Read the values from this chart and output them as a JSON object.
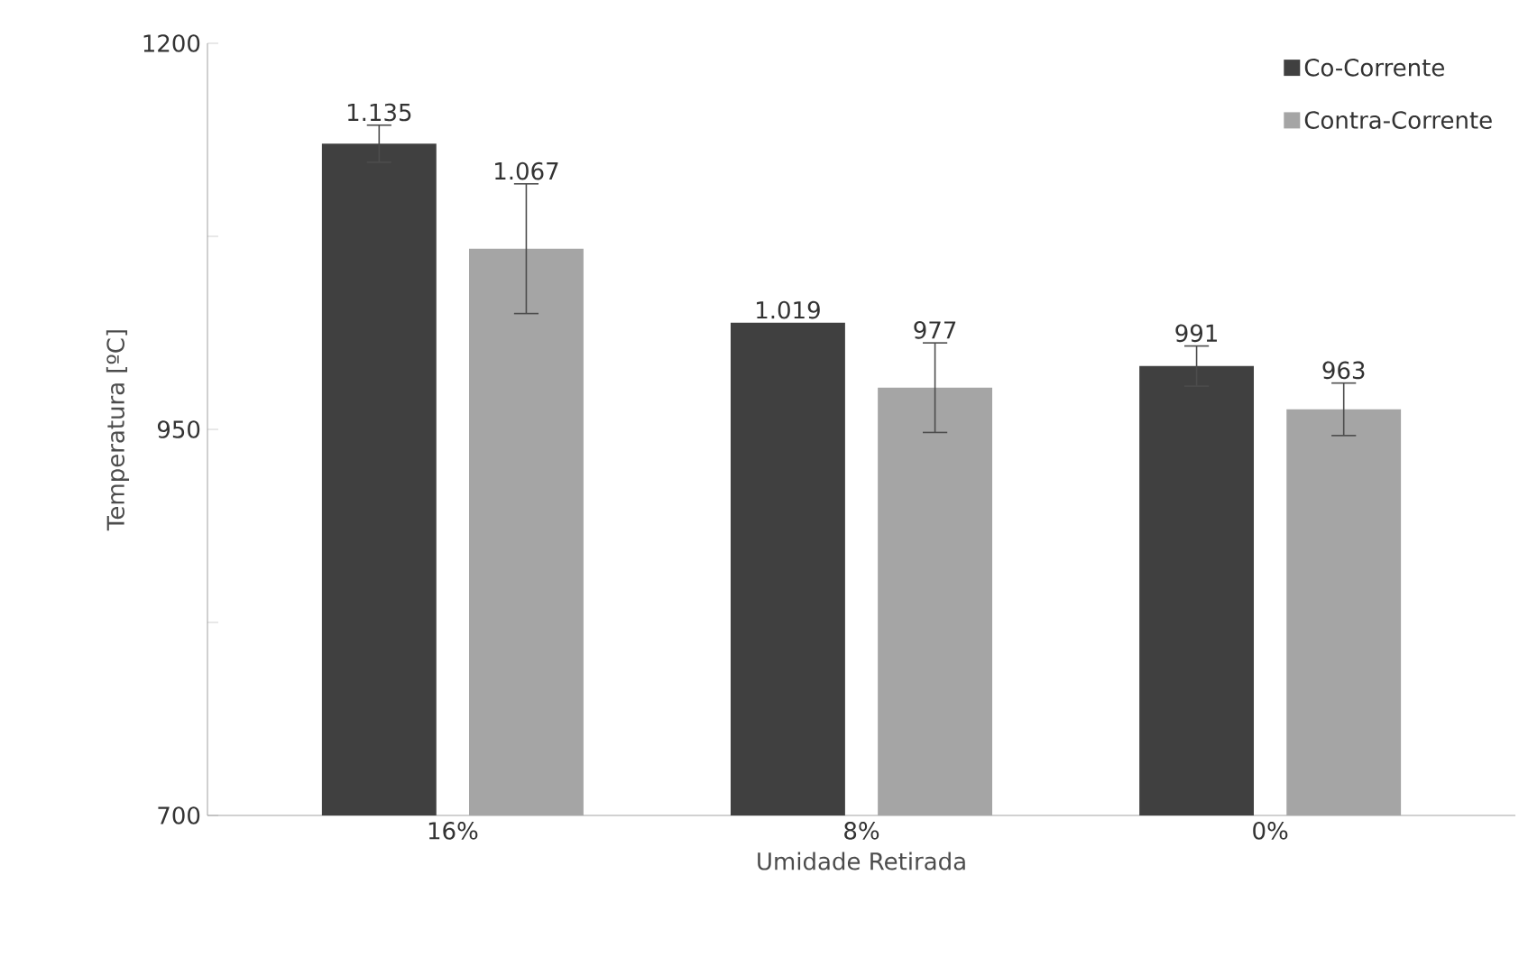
{
  "chart_data": {
    "type": "bar",
    "xlabel": "Umidade Retirada",
    "ylabel": "Temperatura [ºC]",
    "categories": [
      "16%",
      "8%",
      "0%"
    ],
    "series": [
      {
        "name": "Co-Corrente",
        "color": "#404040",
        "values": [
          1135,
          1019,
          991
        ],
        "errors": [
          12,
          null,
          13
        ],
        "value_labels": [
          "1.135",
          "1.019",
          "991"
        ]
      },
      {
        "name": "Contra-Corrente",
        "color": "#a5a5a5",
        "values": [
          1067,
          977,
          963
        ],
        "errors": [
          42,
          29,
          17
        ],
        "value_labels": [
          "1.067",
          "977",
          "963"
        ]
      }
    ],
    "ylim": [
      700,
      1200
    ],
    "yticks": [
      700,
      {
        "value": 825,
        "label": null
      },
      950,
      {
        "value": 1075,
        "label": null
      },
      1200
    ],
    "grid": false,
    "legend": "top right"
  }
}
